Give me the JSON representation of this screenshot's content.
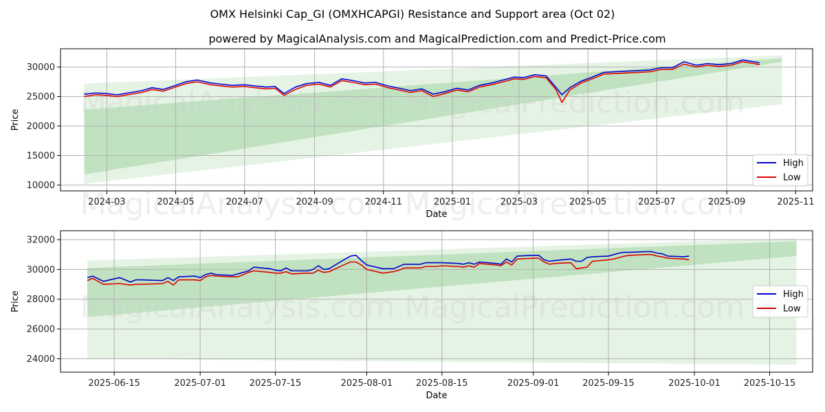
{
  "title": "OMX Helsinki Cap_GI (OMXHCAPGI) Resistance and Support area (Oct 02)",
  "subtitle": "powered by MagicalAnalysis.com and MagicalPrediction.com and Predict-Price.com",
  "watermark": "MagicalAnalysis.com   MagicalPrediction.com",
  "colors": {
    "high": "#0000cc",
    "low": "#dd0000",
    "band": "#2ca02c",
    "grid": "#b0b0b0"
  },
  "chart_data": [
    {
      "type": "line",
      "panel": "full-history",
      "xlabel": "Date",
      "ylabel": "Price",
      "xlim": [
        "2024-01-20",
        "2025-11-16"
      ],
      "ylim": [
        9000,
        33100
      ],
      "x_ticks": [
        {
          "date": "2024-03-01",
          "label": "2024-03"
        },
        {
          "date": "2024-05-01",
          "label": "2024-05"
        },
        {
          "date": "2024-07-01",
          "label": "2024-07"
        },
        {
          "date": "2024-09-01",
          "label": "2024-09"
        },
        {
          "date": "2024-11-01",
          "label": "2024-11"
        },
        {
          "date": "2025-01-01",
          "label": "2025-01"
        },
        {
          "date": "2025-03-01",
          "label": "2025-03"
        },
        {
          "date": "2025-05-01",
          "label": "2025-05"
        },
        {
          "date": "2025-07-01",
          "label": "2025-07"
        },
        {
          "date": "2025-09-01",
          "label": "2025-09"
        },
        {
          "date": "2025-11-01",
          "label": "2025-11"
        }
      ],
      "y_ticks": [
        10000,
        15000,
        20000,
        25000,
        30000
      ],
      "legend": {
        "position": "lower-right",
        "entries": [
          "High",
          "Low"
        ]
      },
      "bands": [
        {
          "x": [
            "2024-02-10",
            "2025-10-20"
          ],
          "upper": [
            27200,
            32000
          ],
          "lower": [
            10200,
            23700
          ],
          "opacity": 0.12
        },
        {
          "x": [
            "2024-02-10",
            "2025-10-20"
          ],
          "upper": [
            22800,
            31500
          ],
          "lower": [
            11800,
            30900
          ],
          "opacity": 0.2
        }
      ],
      "x": [
        "2024-02-10",
        "2024-02-20",
        "2024-03-01",
        "2024-03-10",
        "2024-03-20",
        "2024-04-01",
        "2024-04-10",
        "2024-04-20",
        "2024-05-01",
        "2024-05-10",
        "2024-05-20",
        "2024-06-01",
        "2024-06-10",
        "2024-06-20",
        "2024-07-01",
        "2024-07-10",
        "2024-07-20",
        "2024-07-28",
        "2024-08-05",
        "2024-08-15",
        "2024-08-25",
        "2024-09-05",
        "2024-09-15",
        "2024-09-25",
        "2024-10-05",
        "2024-10-15",
        "2024-10-25",
        "2024-11-05",
        "2024-11-15",
        "2024-11-25",
        "2024-12-05",
        "2024-12-15",
        "2024-12-25",
        "2025-01-05",
        "2025-01-15",
        "2025-01-25",
        "2025-02-05",
        "2025-02-15",
        "2025-02-25",
        "2025-03-05",
        "2025-03-15",
        "2025-03-25",
        "2025-04-03",
        "2025-04-08",
        "2025-04-15",
        "2025-04-25",
        "2025-05-05",
        "2025-05-15",
        "2025-05-25",
        "2025-06-05",
        "2025-06-15",
        "2025-06-25",
        "2025-07-05",
        "2025-07-15",
        "2025-07-25",
        "2025-08-05",
        "2025-08-15",
        "2025-08-25",
        "2025-09-05",
        "2025-09-15",
        "2025-09-25",
        "2025-09-30"
      ],
      "series": [
        {
          "name": "High",
          "values": [
            25400,
            25600,
            25500,
            25300,
            25600,
            26000,
            26500,
            26200,
            26900,
            27500,
            27800,
            27300,
            27100,
            26900,
            27000,
            26800,
            26600,
            26700,
            25500,
            26600,
            27200,
            27400,
            26900,
            28000,
            27700,
            27300,
            27400,
            26800,
            26400,
            26000,
            26300,
            25400,
            25800,
            26400,
            26100,
            26900,
            27300,
            27800,
            28300,
            28200,
            28700,
            28500,
            26500,
            25300,
            26500,
            27600,
            28300,
            29100,
            29200,
            29300,
            29400,
            29500,
            29900,
            29900,
            30900,
            30300,
            30600,
            30400,
            30600,
            31200,
            30900,
            30700
          ]
        },
        {
          "name": "Low",
          "values": [
            25000,
            25300,
            25200,
            25000,
            25300,
            25700,
            26200,
            25900,
            26600,
            27200,
            27500,
            27000,
            26800,
            26600,
            26700,
            26500,
            26300,
            26400,
            25200,
            26200,
            26900,
            27100,
            26600,
            27700,
            27400,
            27000,
            27100,
            26500,
            26100,
            25700,
            26000,
            25000,
            25500,
            26100,
            25800,
            26600,
            27000,
            27500,
            28000,
            27900,
            28400,
            28200,
            26100,
            24000,
            26100,
            27300,
            28000,
            28800,
            28900,
            29000,
            29100,
            29200,
            29600,
            29600,
            30500,
            30000,
            30300,
            30100,
            30300,
            30900,
            30600,
            30400
          ]
        }
      ]
    },
    {
      "type": "line",
      "panel": "recent-zoom",
      "xlabel": "Date",
      "ylabel": "Price",
      "xlim": [
        "2025-06-05",
        "2025-10-23"
      ],
      "ylim": [
        23100,
        32600
      ],
      "x_ticks": [
        {
          "date": "2025-06-15",
          "label": "2025-06-15"
        },
        {
          "date": "2025-07-01",
          "label": "2025-07-01"
        },
        {
          "date": "2025-07-15",
          "label": "2025-07-15"
        },
        {
          "date": "2025-08-01",
          "label": "2025-08-01"
        },
        {
          "date": "2025-08-15",
          "label": "2025-08-15"
        },
        {
          "date": "2025-09-01",
          "label": "2025-09-01"
        },
        {
          "date": "2025-09-15",
          "label": "2025-09-15"
        },
        {
          "date": "2025-10-01",
          "label": "2025-10-01"
        },
        {
          "date": "2025-10-15",
          "label": "2025-10-15"
        }
      ],
      "y_ticks": [
        24000,
        26000,
        28000,
        30000,
        32000
      ],
      "legend": {
        "position": "center-right",
        "entries": [
          "High",
          "Low"
        ]
      },
      "bands": [
        {
          "x": [
            "2025-06-10",
            "2025-10-20"
          ],
          "upper": [
            30600,
            32100
          ],
          "lower": [
            24000,
            23600
          ],
          "opacity": 0.12
        },
        {
          "x": [
            "2025-06-10",
            "2025-10-20"
          ],
          "upper": [
            30100,
            31900
          ],
          "lower": [
            26800,
            30900
          ],
          "opacity": 0.2
        }
      ],
      "x": [
        "2025-06-10",
        "2025-06-11",
        "2025-06-13",
        "2025-06-16",
        "2025-06-18",
        "2025-06-19",
        "2025-06-20",
        "2025-06-24",
        "2025-06-25",
        "2025-06-26",
        "2025-06-27",
        "2025-06-30",
        "2025-07-01",
        "2025-07-02",
        "2025-07-03",
        "2025-07-04",
        "2025-07-07",
        "2025-07-08",
        "2025-07-09",
        "2025-07-10",
        "2025-07-11",
        "2025-07-14",
        "2025-07-15",
        "2025-07-16",
        "2025-07-17",
        "2025-07-18",
        "2025-07-21",
        "2025-07-22",
        "2025-07-23",
        "2025-07-24",
        "2025-07-25",
        "2025-07-28",
        "2025-07-29",
        "2025-07-30",
        "2025-07-31",
        "2025-08-01",
        "2025-08-04",
        "2025-08-05",
        "2025-08-06",
        "2025-08-07",
        "2025-08-08",
        "2025-08-11",
        "2025-08-12",
        "2025-08-13",
        "2025-08-14",
        "2025-08-15",
        "2025-08-18",
        "2025-08-19",
        "2025-08-20",
        "2025-08-21",
        "2025-08-22",
        "2025-08-25",
        "2025-08-26",
        "2025-08-27",
        "2025-08-28",
        "2025-08-29",
        "2025-09-01",
        "2025-09-02",
        "2025-09-03",
        "2025-09-04",
        "2025-09-05",
        "2025-09-08",
        "2025-09-09",
        "2025-09-10",
        "2025-09-11",
        "2025-09-12",
        "2025-09-15",
        "2025-09-16",
        "2025-09-17",
        "2025-09-18",
        "2025-09-19",
        "2025-09-22",
        "2025-09-23",
        "2025-09-24",
        "2025-09-25",
        "2025-09-26",
        "2025-09-29",
        "2025-09-30"
      ],
      "series": [
        {
          "name": "High",
          "values": [
            29450,
            29550,
            29200,
            29450,
            29150,
            29300,
            29300,
            29250,
            29450,
            29250,
            29500,
            29550,
            29450,
            29650,
            29750,
            29650,
            29600,
            29700,
            29800,
            29900,
            30150,
            30050,
            29950,
            29900,
            30100,
            29900,
            29900,
            30000,
            30250,
            30000,
            30050,
            30700,
            30900,
            30950,
            30600,
            30300,
            30050,
            30050,
            30050,
            30200,
            30350,
            30350,
            30450,
            30450,
            30450,
            30450,
            30400,
            30350,
            30450,
            30350,
            30500,
            30400,
            30350,
            30700,
            30500,
            30900,
            30950,
            30950,
            30650,
            30550,
            30600,
            30700,
            30550,
            30550,
            30800,
            30850,
            30900,
            31000,
            31100,
            31150,
            31150,
            31200,
            31200,
            31100,
            31050,
            30900,
            30850,
            30900
          ]
        },
        {
          "name": "Low",
          "values": [
            29250,
            29400,
            29000,
            29050,
            28950,
            29000,
            29000,
            29050,
            29200,
            28950,
            29300,
            29300,
            29250,
            29500,
            29600,
            29550,
            29500,
            29500,
            29650,
            29800,
            29900,
            29800,
            29750,
            29750,
            29850,
            29700,
            29750,
            29750,
            29950,
            29800,
            29850,
            30350,
            30500,
            30500,
            30300,
            30000,
            29750,
            29800,
            29850,
            29950,
            30100,
            30100,
            30200,
            30200,
            30200,
            30250,
            30200,
            30150,
            30250,
            30150,
            30400,
            30300,
            30250,
            30500,
            30300,
            30700,
            30750,
            30750,
            30500,
            30350,
            30400,
            30450,
            30050,
            30100,
            30150,
            30550,
            30650,
            30700,
            30800,
            30900,
            30950,
            31000,
            31000,
            30900,
            30850,
            30750,
            30700,
            30650
          ]
        }
      ]
    }
  ]
}
